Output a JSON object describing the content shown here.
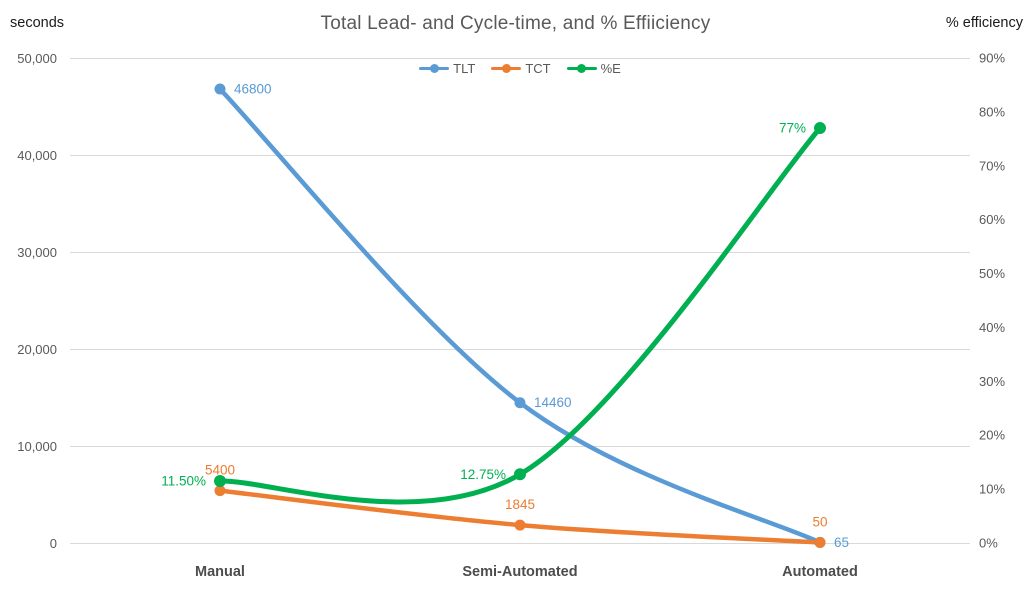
{
  "chart_data": {
    "type": "line",
    "title": "Total Lead- and Cycle-time, and % Effiiciency",
    "categories": [
      "Manual",
      "Semi-Automated",
      "Automated"
    ],
    "left_axis": {
      "label": "seconds",
      "min": 0,
      "max": 50000,
      "step": 10000,
      "tick_labels": [
        "0",
        "10,000",
        "20,000",
        "30,000",
        "40,000",
        "50,000"
      ]
    },
    "right_axis": {
      "label": "% efficiency",
      "min": 0,
      "max": 90,
      "step": 10,
      "tick_labels": [
        "0%",
        "10%",
        "20%",
        "30%",
        "40%",
        "50%",
        "60%",
        "70%",
        "80%",
        "90%"
      ]
    },
    "series": [
      {
        "name": "TLT",
        "axis": "left",
        "color": "#5B9BD5",
        "values": [
          46800,
          14460,
          65
        ],
        "point_labels": [
          "46800",
          "14460",
          "65"
        ],
        "label_side": "right",
        "line_width": 4.5,
        "marker_radius": 5.5
      },
      {
        "name": "TCT",
        "axis": "left",
        "color": "#ED7D31",
        "values": [
          5400,
          1845,
          50
        ],
        "point_labels": [
          "5400",
          "1845",
          "50"
        ],
        "label_side": "above",
        "line_width": 4.5,
        "marker_radius": 5.5
      },
      {
        "name": "%E",
        "axis": "right",
        "color": "#00B050",
        "values": [
          11.5,
          12.75,
          77
        ],
        "point_labels": [
          "11.50%",
          "12.75%",
          "77%"
        ],
        "label_side": "left",
        "line_width": 5,
        "marker_radius": 6
      }
    ],
    "legend": {
      "position": "top",
      "entries": [
        "TLT",
        "TCT",
        "%E"
      ]
    },
    "style": {
      "grid": "horizontal",
      "grid_color": "#D9D9D9",
      "tick_label_color": "#595959",
      "category_label_color": "#4d4d4d",
      "title_color": "#595959",
      "background": "#ffffff"
    }
  }
}
